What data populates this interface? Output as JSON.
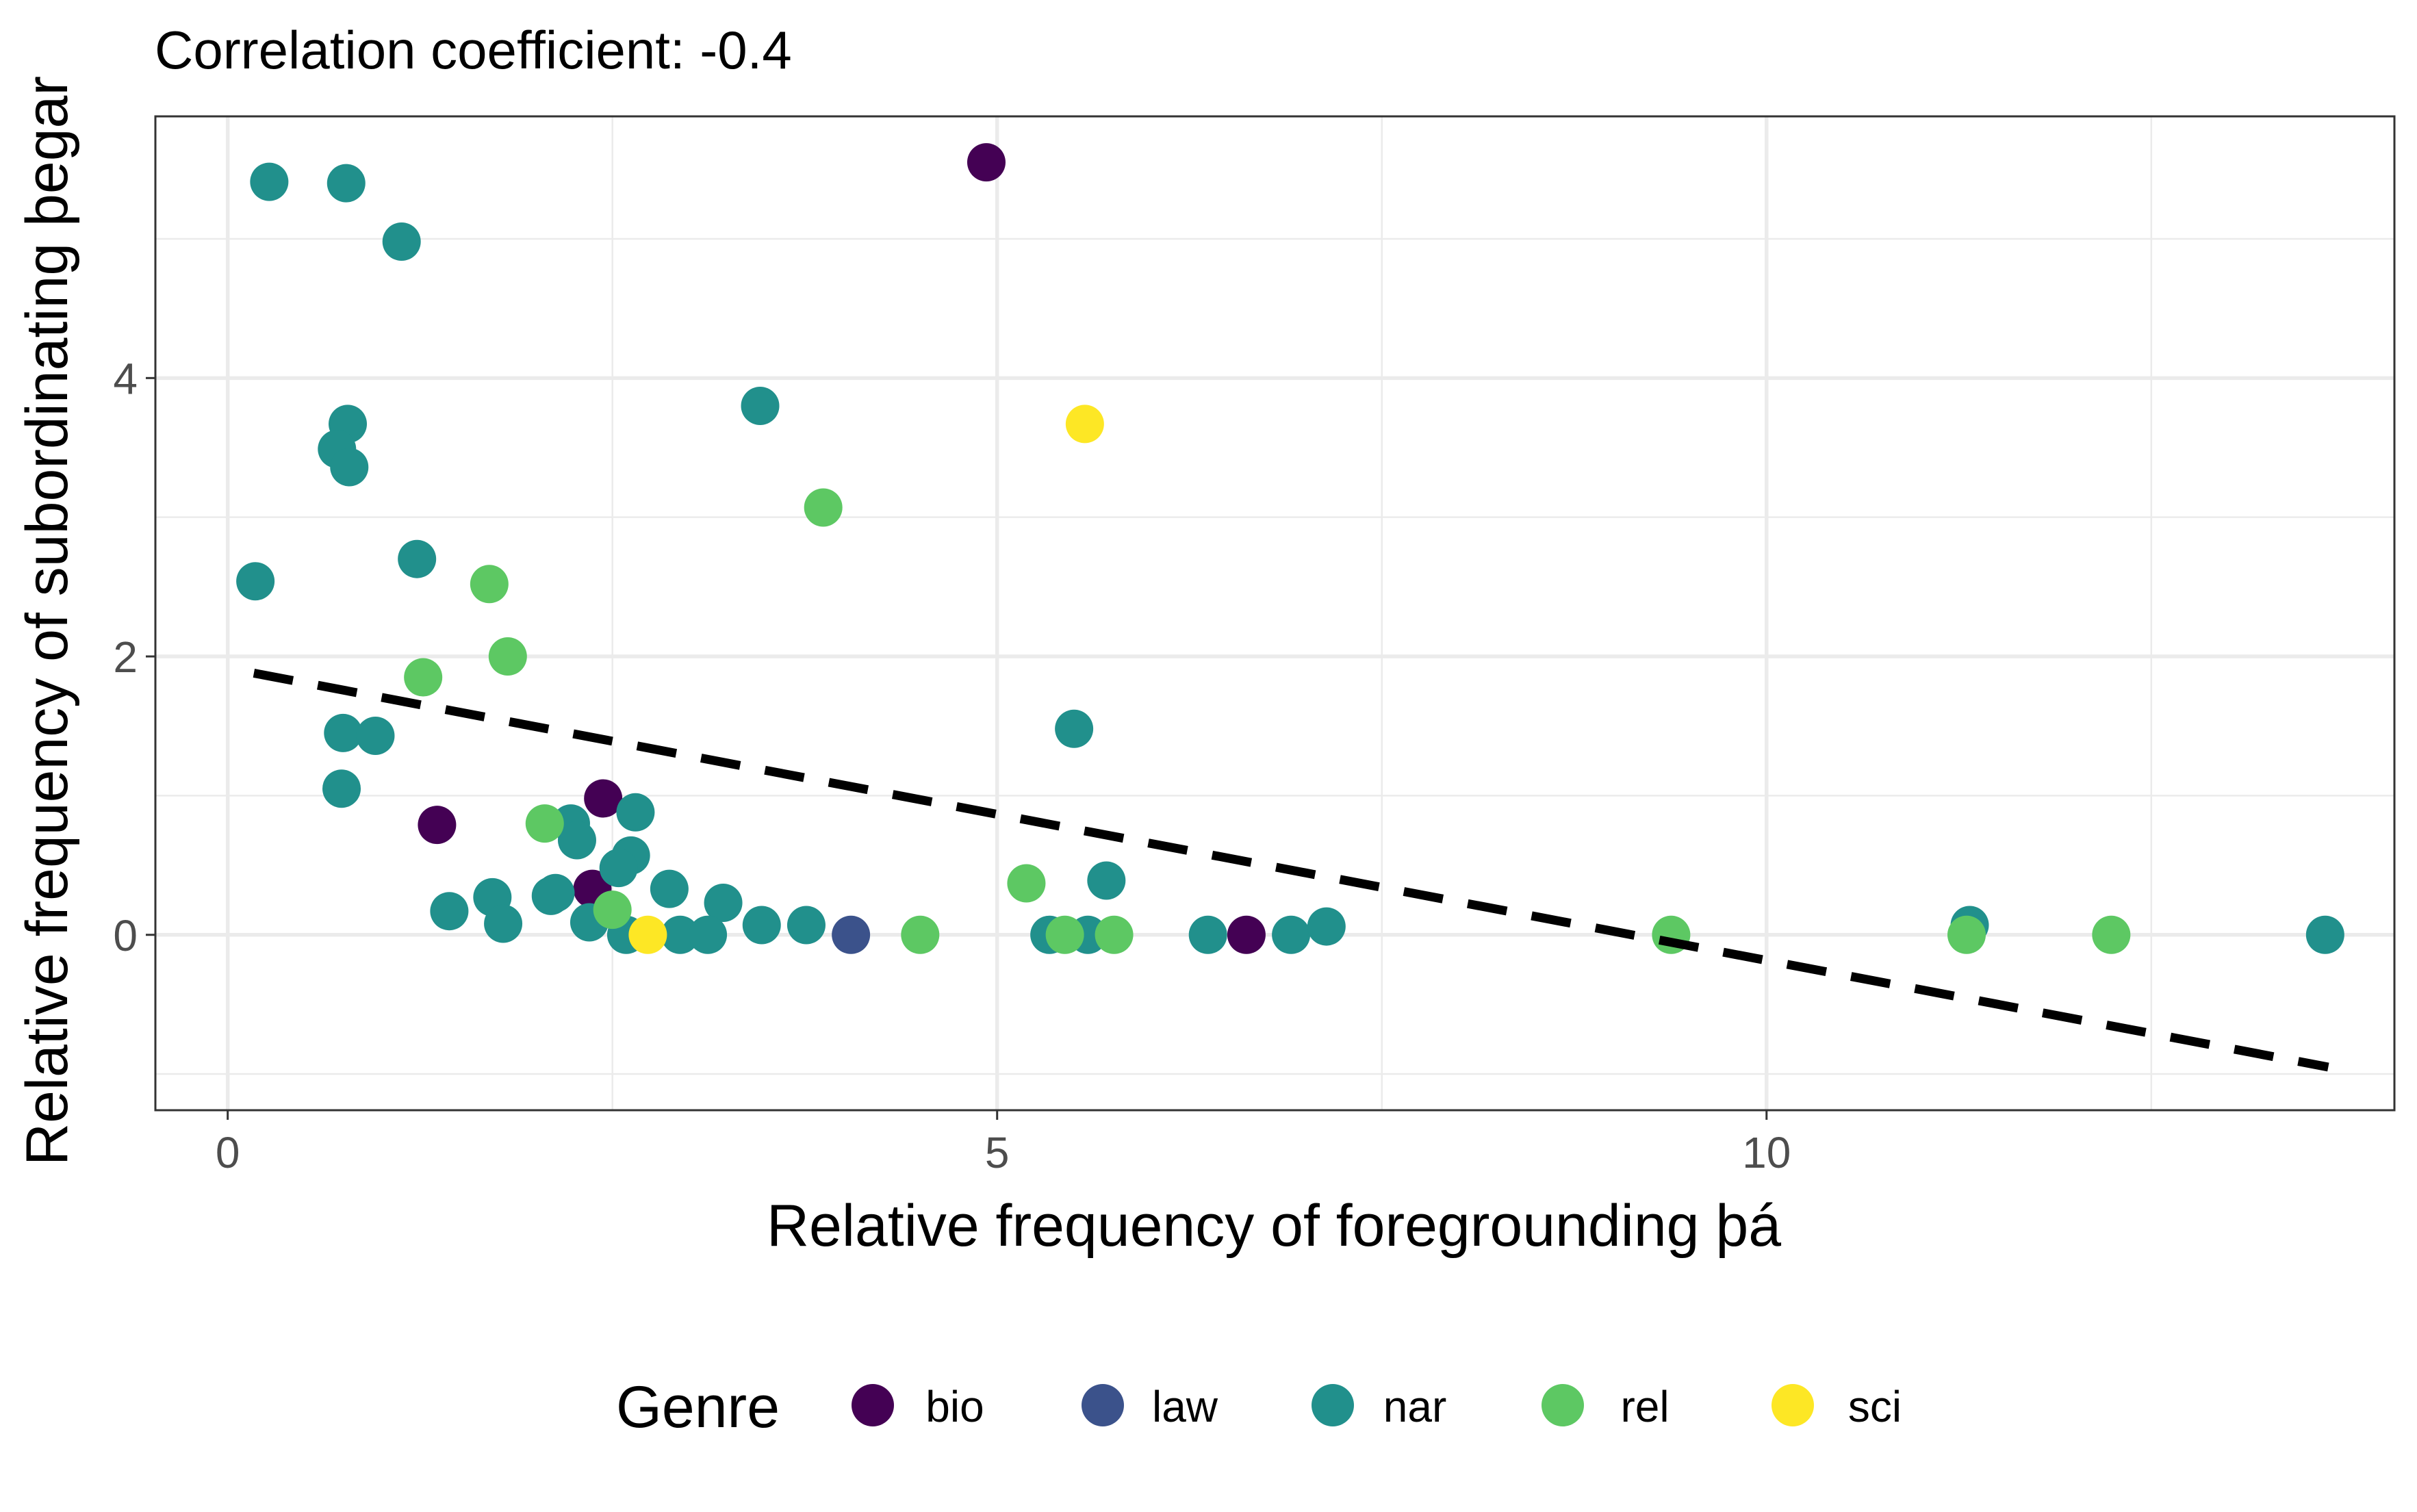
{
  "colors": {
    "bio": "#440154",
    "law": "#3B528B",
    "nar": "#21908C",
    "rel": "#5DC863",
    "sci": "#FDE725",
    "trend": "#000000",
    "grid": "#EBEBEB",
    "panel_border": "#333333",
    "tick_text": "#4D4D4D"
  },
  "chart_data": {
    "type": "scatter",
    "title": "Correlation coefficient: -0.4",
    "xlabel": "Relative frequency of foregrounding þá",
    "ylabel": "Relative frequency of subordinating þegar",
    "xlim": [
      -0.47,
      14.08
    ],
    "ylim": [
      -1.26,
      5.88
    ],
    "x_ticks": [
      0,
      5,
      10
    ],
    "x_tick_labels": [
      "0",
      "5",
      "10"
    ],
    "y_ticks": [
      0,
      2,
      4
    ],
    "y_tick_labels": [
      "0",
      "2",
      "4"
    ],
    "grid": true,
    "legend": {
      "title": "Genre",
      "position": "bottom",
      "entries": [
        "bio",
        "law",
        "nar",
        "rel",
        "sci"
      ]
    },
    "trend_line": {
      "style": "dashed",
      "points": [
        [
          0.17,
          1.88
        ],
        [
          13.65,
          -0.95
        ]
      ]
    },
    "series": [
      {
        "name": "bio",
        "points": [
          [
            4.93,
            5.55
          ],
          [
            1.36,
            0.79
          ],
          [
            2.44,
            0.98
          ],
          [
            2.37,
            0.33
          ],
          [
            6.62,
            0.0
          ]
        ]
      },
      {
        "name": "law",
        "points": [
          [
            4.05,
            0.0
          ]
        ]
      },
      {
        "name": "nar",
        "points": [
          [
            0.27,
            5.41
          ],
          [
            0.77,
            5.4
          ],
          [
            1.13,
            4.98
          ],
          [
            3.46,
            3.8
          ],
          [
            0.78,
            3.67
          ],
          [
            0.71,
            3.49
          ],
          [
            0.79,
            3.36
          ],
          [
            0.18,
            2.54
          ],
          [
            1.23,
            2.7
          ],
          [
            5.5,
            1.48
          ],
          [
            0.75,
            1.45
          ],
          [
            0.96,
            1.43
          ],
          [
            0.74,
            1.05
          ],
          [
            2.23,
            0.8
          ],
          [
            2.27,
            0.68
          ],
          [
            2.65,
            0.88
          ],
          [
            2.62,
            0.57
          ],
          [
            2.54,
            0.48
          ],
          [
            2.87,
            0.33
          ],
          [
            3.22,
            0.23
          ],
          [
            2.1,
            0.28
          ],
          [
            2.13,
            0.3
          ],
          [
            1.72,
            0.27
          ],
          [
            1.44,
            0.17
          ],
          [
            1.79,
            0.08
          ],
          [
            2.35,
            0.09
          ],
          [
            2.59,
            0.0
          ],
          [
            2.94,
            0.0
          ],
          [
            3.12,
            0.0
          ],
          [
            3.47,
            0.07
          ],
          [
            3.76,
            0.07
          ],
          [
            5.34,
            0.0
          ],
          [
            5.59,
            0.0
          ],
          [
            5.71,
            0.39
          ],
          [
            6.37,
            0.0
          ],
          [
            6.91,
            0.0
          ],
          [
            7.14,
            0.06
          ],
          [
            11.32,
            0.07
          ],
          [
            13.63,
            0.0
          ]
        ]
      },
      {
        "name": "rel",
        "points": [
          [
            3.87,
            3.07
          ],
          [
            1.7,
            2.52
          ],
          [
            1.82,
            2.0
          ],
          [
            1.27,
            1.85
          ],
          [
            2.06,
            0.8
          ],
          [
            5.19,
            0.37
          ],
          [
            2.5,
            0.18
          ],
          [
            4.5,
            0.0
          ],
          [
            5.44,
            0.0
          ],
          [
            5.76,
            0.0
          ],
          [
            9.38,
            0.0
          ],
          [
            11.3,
            0.0
          ],
          [
            12.24,
            0.0
          ]
        ]
      },
      {
        "name": "sci",
        "points": [
          [
            5.57,
            3.67
          ],
          [
            2.73,
            0.0
          ]
        ]
      }
    ]
  }
}
